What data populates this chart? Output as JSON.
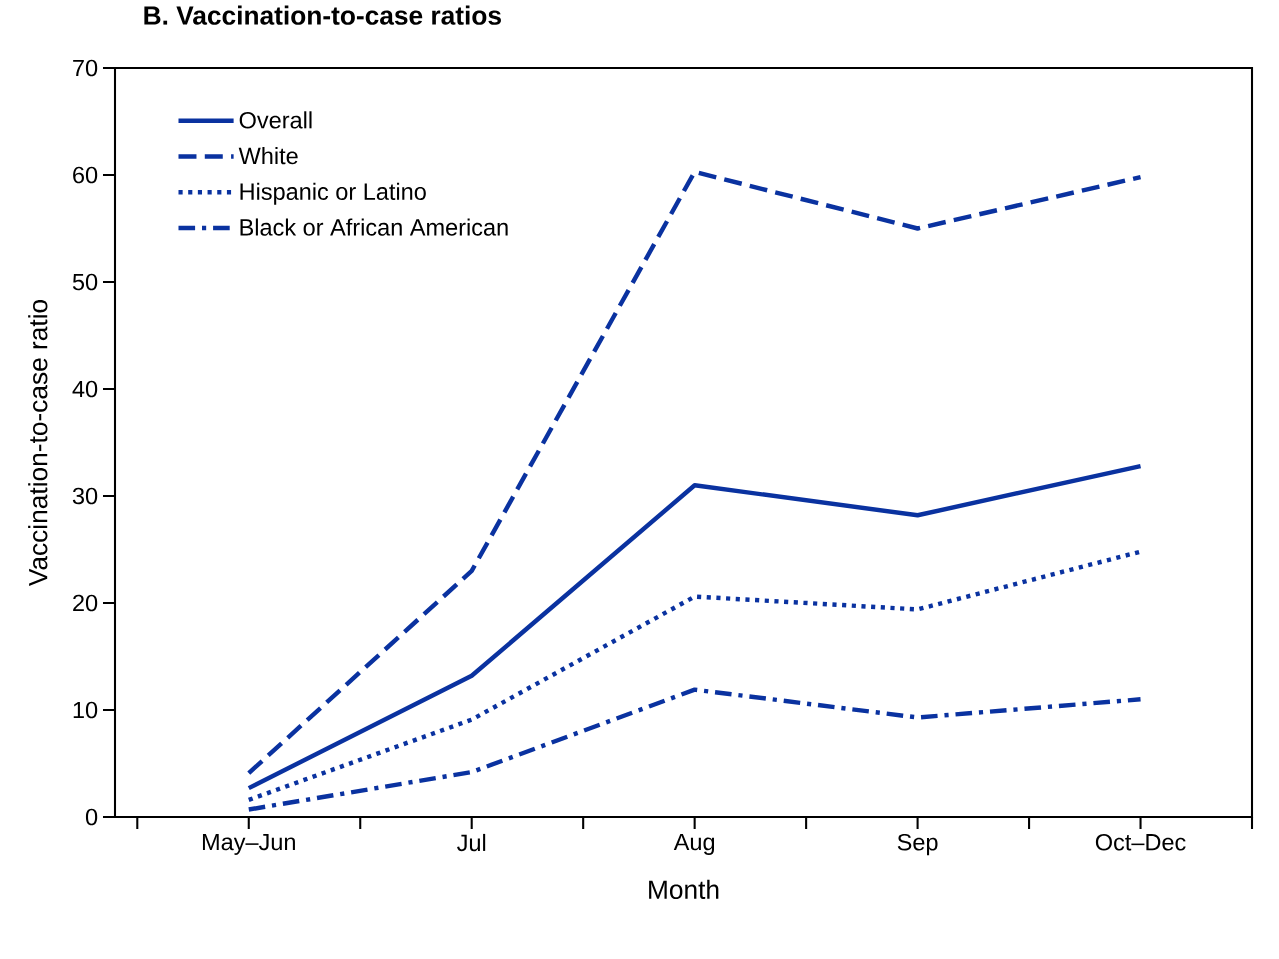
{
  "chart_data": {
    "type": "line",
    "title": "B. Vaccination-to-case ratios",
    "xlabel": "Month",
    "ylabel": "Vaccination-to-case ratio",
    "categories": [
      "May–Jun",
      "Jul",
      "Aug",
      "Sep",
      "Oct–Dec"
    ],
    "ylim": [
      0,
      70
    ],
    "yticks": [
      0,
      10,
      20,
      30,
      40,
      50,
      60,
      70
    ],
    "grid": false,
    "legend": "top left",
    "marker": "none",
    "series": [
      {
        "name": "Overall",
        "color": "#0a32a0",
        "line_style": "solid",
        "values": [
          2.7,
          13.2,
          31.0,
          28.2,
          32.8
        ]
      },
      {
        "name": "White",
        "color": "#0a32a0",
        "line_style": "dashed",
        "values": [
          4.1,
          23.0,
          60.3,
          55.0,
          59.8
        ]
      },
      {
        "name": "Hispanic or Latino",
        "color": "#0a32a0",
        "line_style": "dotted",
        "values": [
          1.6,
          9.1,
          20.6,
          19.4,
          24.8
        ]
      },
      {
        "name": "Black or African American",
        "color": "#0a32a0",
        "line_style": "dashdot",
        "values": [
          0.7,
          4.2,
          11.9,
          9.3,
          11.0
        ]
      }
    ]
  }
}
